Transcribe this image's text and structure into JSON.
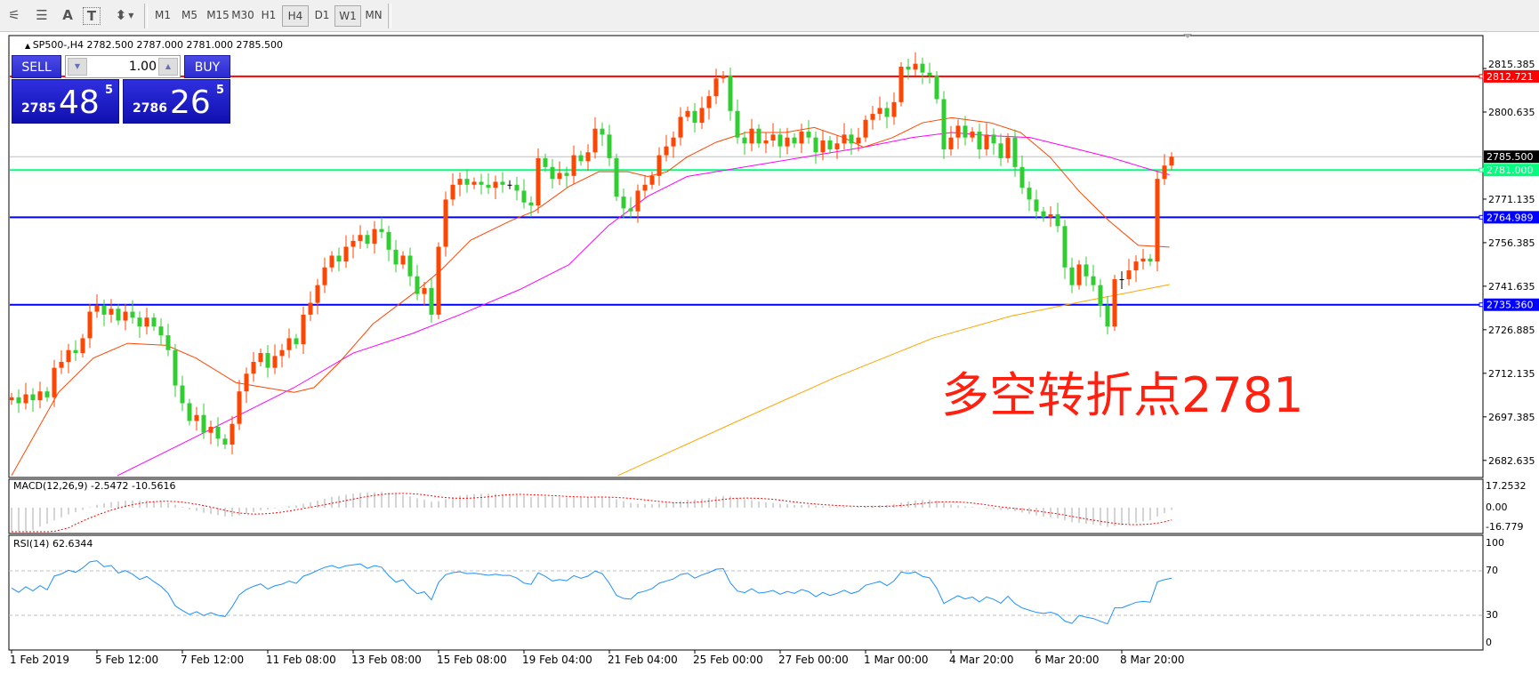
{
  "toolbar": {
    "tools": [
      {
        "icon": "elliott-wave-icon",
        "glyph": "⚟"
      },
      {
        "icon": "fibonacci-fan-icon",
        "glyph": "☰"
      },
      {
        "icon": "text-icon",
        "glyph": "A"
      },
      {
        "icon": "text-label-icon",
        "glyph": "T"
      },
      {
        "icon": "arrows-dropdown-icon",
        "glyph": "⬍"
      }
    ],
    "timeframes": [
      "M1",
      "M5",
      "M15",
      "M30",
      "H1",
      "H4",
      "D1",
      "W1",
      "MN"
    ],
    "active_timeframe": "H4",
    "highlighted_timeframe": "W1"
  },
  "chart": {
    "header": "SP500-,H4  2782.500 2787.000 2781.000 2785.500",
    "annotation": "多空转折点2781",
    "colors": {
      "bull": "#ff4500",
      "bear": "#32cd32",
      "ma_fast": "#ff4500",
      "ma_mid": "#ff00ff",
      "ma_slow": "#ffa500",
      "rsi": "#1e90ff",
      "macd_hist": "#a8a8a8",
      "macd_signal": "#ff0000"
    }
  },
  "trade_panel": {
    "sell_label": "SELL",
    "buy_label": "BUY",
    "volume": "1.00",
    "sell_price": {
      "prefix": "2785",
      "big": "48",
      "sup": "5"
    },
    "buy_price": {
      "prefix": "2786",
      "big": "26",
      "sup": "5"
    }
  },
  "indicators": {
    "macd_label": "MACD(12,26,9) -2.5472 -10.5616",
    "macd_ticks": [
      "17.2532",
      "0.00",
      "-16.779"
    ],
    "rsi_label": "RSI(14) 62.6344",
    "rsi_ticks": [
      "100",
      "70",
      "30",
      "0"
    ]
  },
  "chart_data": {
    "type": "candlestick",
    "symbol": "SP500-",
    "timeframe": "H4",
    "y_ticks": [
      2815.385,
      2800.635,
      2771.135,
      2756.385,
      2741.635,
      2726.885,
      2712.135,
      2697.385,
      2682.635
    ],
    "x_tick_labels": [
      "1 Feb 2019",
      "5 Feb 12:00",
      "7 Feb 12:00",
      "11 Feb 08:00",
      "13 Feb 08:00",
      "15 Feb 08:00",
      "19 Feb 04:00",
      "21 Feb 04:00",
      "25 Feb 00:00",
      "27 Feb 00:00",
      "1 Mar 00:00",
      "4 Mar 20:00",
      "6 Mar 20:00",
      "8 Mar 20:00"
    ],
    "last_bar": {
      "open": 2782.5,
      "high": 2787.0,
      "low": 2781.0,
      "close": 2785.5
    },
    "closes": [
      2704,
      2702,
      2705,
      2703,
      2706,
      2704,
      2714,
      2716,
      2720,
      2719,
      2724,
      2733,
      2735,
      2732,
      2734,
      2730,
      2733,
      2731,
      2728,
      2731,
      2728,
      2725,
      2720,
      2708,
      2702,
      2696,
      2698,
      2692,
      2694,
      2690,
      2688,
      2695,
      2706,
      2712,
      2716,
      2719,
      2714,
      2718,
      2720,
      2724,
      2722,
      2732,
      2736,
      2742,
      2748,
      2752,
      2750,
      2755,
      2757,
      2759,
      2756,
      2761,
      2760,
      2754,
      2749,
      2752,
      2745,
      2739,
      2741,
      2732,
      2755,
      2771,
      2776,
      2778,
      2776,
      2777,
      2776,
      2775,
      2777,
      2776,
      2776,
      2774,
      2770,
      2769,
      2785,
      2782,
      2778,
      2780,
      2779,
      2786,
      2784,
      2787,
      2795,
      2793,
      2785,
      2772,
      2768,
      2767,
      2774,
      2776,
      2779,
      2786,
      2789,
      2792,
      2799,
      2801,
      2797,
      2802,
      2806,
      2812,
      2813,
      2801,
      2792,
      2790,
      2795,
      2790,
      2791,
      2793,
      2789,
      2792,
      2790,
      2794,
      2792,
      2787,
      2791,
      2788,
      2790,
      2793,
      2790,
      2792,
      2798,
      2800,
      2802,
      2799,
      2804,
      2816,
      2815,
      2817,
      2814,
      2813,
      2805,
      2788,
      2792,
      2796,
      2792,
      2794,
      2788,
      2793,
      2790,
      2785,
      2792,
      2782,
      2775,
      2771,
      2767,
      2765,
      2766,
      2762,
      2748,
      2742,
      2749,
      2745,
      2742,
      2735,
      2728,
      2744,
      2744,
      2747,
      2750,
      2751,
      2750,
      2778,
      2782.5,
      2785.5
    ],
    "ma_fast": [
      [
        0,
        2677.5
      ],
      [
        6.6,
        2705.7
      ],
      [
        11.5,
        2717.3
      ],
      [
        16.3,
        2722.3
      ],
      [
        21.8,
        2721.6
      ],
      [
        25.9,
        2717.3
      ],
      [
        31.5,
        2709
      ],
      [
        35.6,
        2707.3
      ],
      [
        39.7,
        2705.7
      ],
      [
        42.5,
        2707.3
      ],
      [
        46,
        2715.7
      ],
      [
        50.8,
        2728.9
      ],
      [
        56.3,
        2738.9
      ],
      [
        60.4,
        2747.2
      ],
      [
        64.5,
        2757.2
      ],
      [
        70.1,
        2763.8
      ],
      [
        73.5,
        2767.1
      ],
      [
        78.3,
        2775.4
      ],
      [
        82.5,
        2780.4
      ],
      [
        86.6,
        2780.4
      ],
      [
        89.4,
        2778.8
      ],
      [
        92.1,
        2780.4
      ],
      [
        94.9,
        2785.4
      ],
      [
        99,
        2790.4
      ],
      [
        103.2,
        2793.7
      ],
      [
        108.7,
        2793.7
      ],
      [
        112.8,
        2795.4
      ],
      [
        116.9,
        2792
      ],
      [
        119.7,
        2788.7
      ],
      [
        123.8,
        2792
      ],
      [
        128,
        2797
      ],
      [
        132.1,
        2798.7
      ],
      [
        137.6,
        2797
      ],
      [
        141.8,
        2793.7
      ],
      [
        145.9,
        2785.4
      ],
      [
        150,
        2773.8
      ],
      [
        154.2,
        2763.8
      ],
      [
        158.3,
        2755.5
      ],
      [
        162.7,
        2754.9
      ]
    ],
    "ma_mid": [
      [
        14.9,
        2677.5
      ],
      [
        23.2,
        2687.4
      ],
      [
        31.5,
        2697.4
      ],
      [
        39.7,
        2707.3
      ],
      [
        48,
        2719
      ],
      [
        56.3,
        2725.6
      ],
      [
        63.2,
        2732.2
      ],
      [
        71.4,
        2740.5
      ],
      [
        78.3,
        2748.9
      ],
      [
        83.9,
        2762.2
      ],
      [
        89.4,
        2772.1
      ],
      [
        94.9,
        2778.8
      ],
      [
        103.2,
        2782.1
      ],
      [
        111.4,
        2785.4
      ],
      [
        119.7,
        2788.7
      ],
      [
        126.6,
        2792
      ],
      [
        132.1,
        2793.7
      ],
      [
        137.6,
        2792.6
      ],
      [
        143.1,
        2792
      ],
      [
        148.7,
        2788.7
      ],
      [
        154.2,
        2785.4
      ],
      [
        159.7,
        2781.4
      ],
      [
        162.7,
        2779.4
      ]
    ],
    "ma_slow": [
      [
        85.2,
        2677.5
      ],
      [
        101.8,
        2695.7
      ],
      [
        115.6,
        2710.6
      ],
      [
        129.4,
        2724
      ],
      [
        140.4,
        2731.5
      ],
      [
        150,
        2736.2
      ],
      [
        157,
        2739.5
      ],
      [
        162.7,
        2742.2
      ]
    ],
    "hlines": [
      {
        "price": 2812.721,
        "label": "2812.721",
        "color": "#ff0000"
      },
      {
        "price": 2785.5,
        "label": "2785.500",
        "color": "#c0c0c0",
        "label_bg": "#000000"
      },
      {
        "price": 2781.0,
        "label": "2781.000",
        "color": "#00ff7f"
      },
      {
        "price": 2764.989,
        "label": "2764.989",
        "color": "#0000ff"
      },
      {
        "price": 2735.36,
        "label": "2735.360",
        "color": "#0000ff"
      }
    ]
  }
}
